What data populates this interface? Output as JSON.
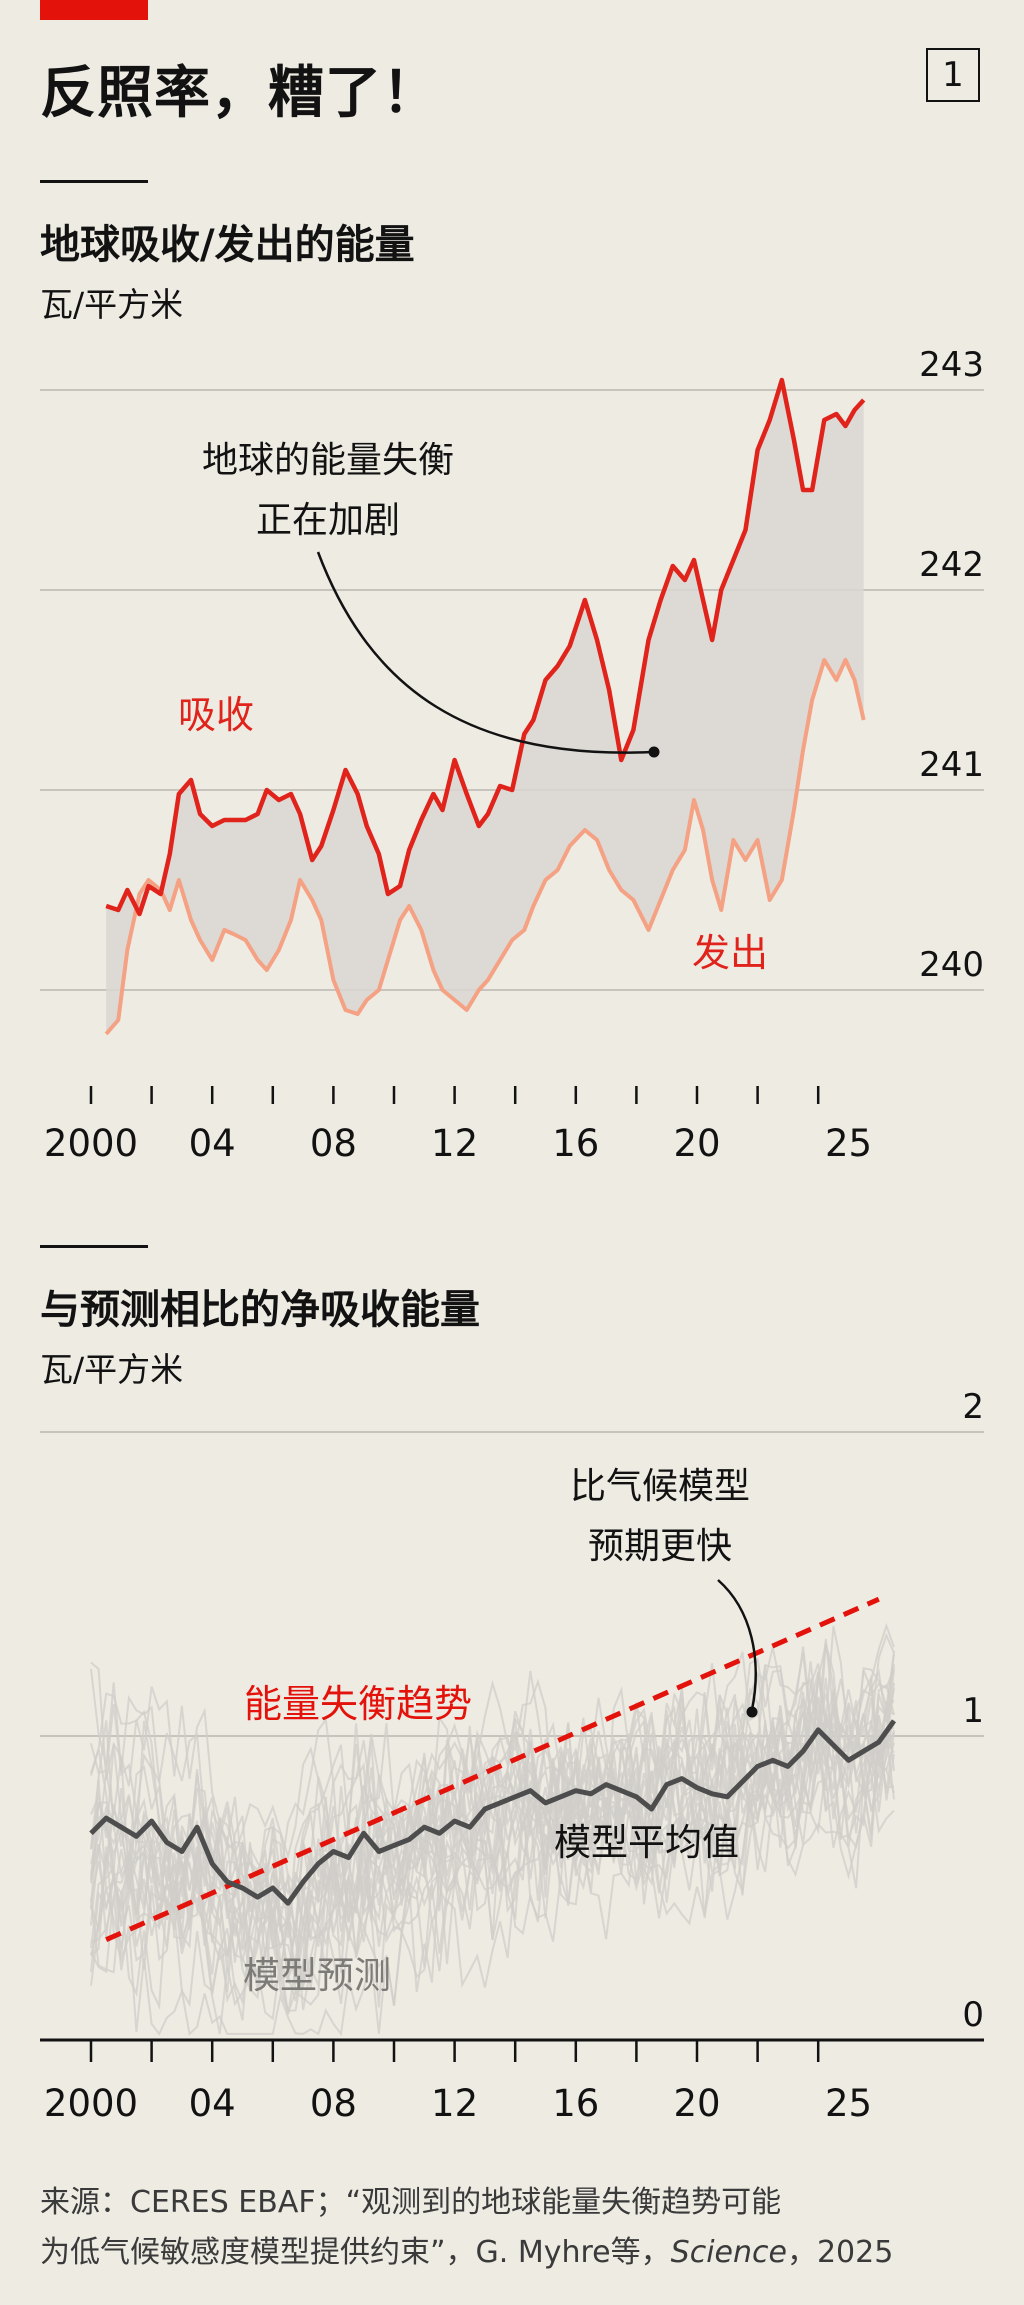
{
  "header": {
    "headline": "反照率，糟了！",
    "badge": "1"
  },
  "colors": {
    "accent": "#e3120b",
    "absorbed": "#e0231b",
    "emitted": "#f4a184",
    "fill": "#d9d6d1",
    "model_mean": "#4d4d4d",
    "model_runs": "#d0ceca",
    "background": "#eeebe3"
  },
  "chart_data": [
    {
      "type": "line",
      "title": "地球吸收/发出的能量",
      "ylabel": "瓦/平方米",
      "ylim": [
        239.5,
        243.2
      ],
      "yticks": [
        "240",
        "241",
        "242",
        "243"
      ],
      "xticks": [
        "2000",
        "04",
        "08",
        "12",
        "16",
        "20",
        "25"
      ],
      "grid": true,
      "annotations": {
        "imbalance": [
          "地球的能量失衡",
          "正在加剧"
        ],
        "absorbed_label": "吸收",
        "emitted_label": "发出"
      },
      "series": [
        {
          "name": "吸收",
          "x": [
            2000.5,
            2000.9,
            2001.2,
            2001.6,
            2001.9,
            2002.3,
            2002.6,
            2002.9,
            2003.3,
            2003.6,
            2004.0,
            2004.4,
            2004.7,
            2005.1,
            2005.5,
            2005.8,
            2006.2,
            2006.6,
            2006.9,
            2007.3,
            2007.6,
            2008.0,
            2008.4,
            2008.8,
            2009.1,
            2009.5,
            2009.8,
            2010.2,
            2010.5,
            2010.9,
            2011.3,
            2011.6,
            2012.0,
            2012.4,
            2012.8,
            2013.1,
            2013.5,
            2013.9,
            2014.3,
            2014.6,
            2015.0,
            2015.4,
            2015.8,
            2016.3,
            2016.7,
            2017.1,
            2017.5,
            2017.9,
            2018.4,
            2018.8,
            2019.2,
            2019.6,
            2019.9,
            2020.2,
            2020.5,
            2020.8,
            2021.2,
            2021.6,
            2022.0,
            2022.4,
            2022.8,
            2023.2,
            2023.5,
            2023.8,
            2024.2,
            2024.6,
            2024.9,
            2025.2,
            2025.5
          ],
          "values": [
            240.42,
            240.4,
            240.5,
            240.38,
            240.52,
            240.48,
            240.68,
            240.98,
            241.05,
            240.88,
            240.82,
            240.85,
            240.85,
            240.85,
            240.88,
            241.0,
            240.95,
            240.98,
            240.88,
            240.65,
            240.72,
            240.9,
            241.1,
            240.98,
            240.82,
            240.68,
            240.48,
            240.52,
            240.7,
            240.85,
            240.98,
            240.9,
            241.15,
            240.98,
            240.82,
            240.88,
            241.02,
            241.0,
            241.28,
            241.35,
            241.55,
            241.62,
            241.72,
            241.95,
            241.75,
            241.5,
            241.15,
            241.3,
            241.75,
            241.95,
            242.12,
            242.05,
            242.15,
            241.95,
            241.75,
            242.0,
            242.15,
            242.3,
            242.7,
            242.85,
            243.05,
            242.75,
            242.5,
            242.5,
            242.85,
            242.88,
            242.82,
            242.9,
            242.95
          ]
        },
        {
          "name": "发出",
          "x": [
            2000.5,
            2000.9,
            2001.2,
            2001.6,
            2001.9,
            2002.3,
            2002.6,
            2002.9,
            2003.3,
            2003.6,
            2004.0,
            2004.4,
            2004.7,
            2005.1,
            2005.5,
            2005.8,
            2006.2,
            2006.6,
            2006.9,
            2007.3,
            2007.6,
            2008.0,
            2008.4,
            2008.8,
            2009.1,
            2009.5,
            2009.8,
            2010.2,
            2010.5,
            2010.9,
            2011.3,
            2011.6,
            2012.0,
            2012.4,
            2012.8,
            2013.1,
            2013.5,
            2013.9,
            2014.3,
            2014.6,
            2015.0,
            2015.4,
            2015.8,
            2016.3,
            2016.7,
            2017.1,
            2017.5,
            2017.9,
            2018.4,
            2018.8,
            2019.2,
            2019.6,
            2019.9,
            2020.2,
            2020.5,
            2020.8,
            2021.2,
            2021.6,
            2022.0,
            2022.4,
            2022.8,
            2023.2,
            2023.5,
            2023.8,
            2024.2,
            2024.6,
            2024.9,
            2025.2,
            2025.5
          ],
          "values": [
            239.78,
            239.85,
            240.2,
            240.48,
            240.55,
            240.5,
            240.4,
            240.55,
            240.35,
            240.25,
            240.15,
            240.3,
            240.28,
            240.25,
            240.15,
            240.1,
            240.2,
            240.35,
            240.55,
            240.45,
            240.35,
            240.05,
            239.9,
            239.88,
            239.95,
            240.0,
            240.15,
            240.35,
            240.42,
            240.3,
            240.1,
            240.0,
            239.95,
            239.9,
            240.0,
            240.05,
            240.15,
            240.25,
            240.3,
            240.42,
            240.55,
            240.6,
            240.72,
            240.8,
            240.75,
            240.6,
            240.5,
            240.45,
            240.3,
            240.45,
            240.6,
            240.7,
            240.95,
            240.8,
            240.55,
            240.4,
            240.75,
            240.65,
            240.75,
            240.45,
            240.55,
            240.9,
            241.2,
            241.45,
            241.65,
            241.55,
            241.65,
            241.55,
            241.35
          ]
        }
      ]
    },
    {
      "type": "line",
      "title": "与预测相比的净吸收能量",
      "ylabel": "瓦/平方米",
      "ylim": [
        0,
        2
      ],
      "yticks": [
        "0",
        "1",
        "2"
      ],
      "xticks": [
        "2000",
        "04",
        "08",
        "12",
        "16",
        "20",
        "25"
      ],
      "grid": true,
      "annotations": {
        "faster": [
          "比气候模型",
          "预期更快"
        ],
        "trend_label": "能量失衡趋势",
        "mean_label": "模型平均值",
        "runs_label": "模型预测"
      },
      "series": [
        {
          "name": "模型平均值",
          "x": [
            2000,
            2000.5,
            2001,
            2001.5,
            2002,
            2002.5,
            2003,
            2003.5,
            2004,
            2004.5,
            2005,
            2005.5,
            2006,
            2006.5,
            2007,
            2007.5,
            2008,
            2008.5,
            2009,
            2009.5,
            2010,
            2010.5,
            2011,
            2011.5,
            2012,
            2012.5,
            2013,
            2013.5,
            2014,
            2014.5,
            2015,
            2015.5,
            2016,
            2016.5,
            2017,
            2017.5,
            2018,
            2018.5,
            2019,
            2019.5,
            2020,
            2020.5,
            2021,
            2021.5,
            2022,
            2022.5,
            2023,
            2023.5,
            2024,
            2024.5,
            2025,
            2025.5,
            2026,
            2026.5
          ],
          "values": [
            0.68,
            0.73,
            0.7,
            0.67,
            0.72,
            0.65,
            0.62,
            0.7,
            0.58,
            0.52,
            0.5,
            0.47,
            0.5,
            0.45,
            0.52,
            0.58,
            0.62,
            0.6,
            0.68,
            0.62,
            0.64,
            0.66,
            0.7,
            0.68,
            0.72,
            0.7,
            0.76,
            0.78,
            0.8,
            0.82,
            0.78,
            0.8,
            0.82,
            0.81,
            0.84,
            0.82,
            0.8,
            0.76,
            0.84,
            0.86,
            0.83,
            0.81,
            0.8,
            0.85,
            0.9,
            0.92,
            0.9,
            0.95,
            1.02,
            0.97,
            0.92,
            0.95,
            0.98,
            1.05
          ]
        },
        {
          "name": "能量失衡趋势",
          "x": [
            2000.5,
            2026
          ],
          "values": [
            0.33,
            1.45
          ]
        }
      ]
    }
  ],
  "source": {
    "line1": "来源：CERES EBAF；“观测到的地球能量失衡趋势可能",
    "line2_prefix": "为低气候敏感度模型提供约束”，G. Myhre等，",
    "journal": "Science",
    "line2_suffix": "，2025"
  }
}
